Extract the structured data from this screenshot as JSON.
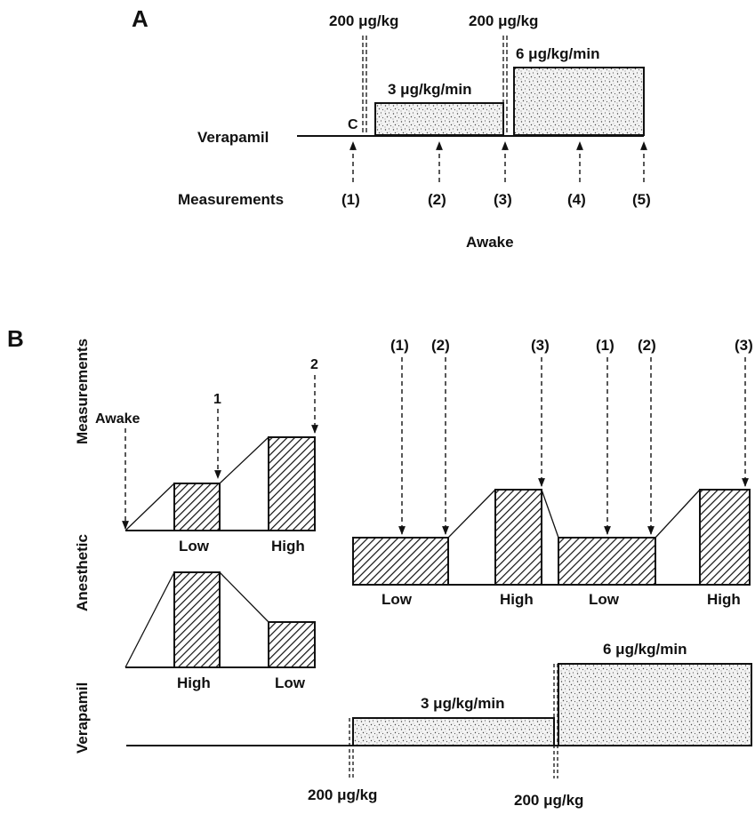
{
  "panel_a": {
    "letter": "A",
    "bolus_1": "200 μg/kg",
    "bolus_2": "200 μg/kg",
    "infusion_low": "3 μg/kg/min",
    "infusion_high": "6 μg/kg/min",
    "control_marker": "C",
    "verapamil_label": "Verapamil",
    "measurements_label": "Measurements",
    "measurement_points": [
      "(1)",
      "(2)",
      "(3)",
      "(4)",
      "(5)"
    ],
    "state_label": "Awake"
  },
  "panel_b": {
    "letter": "B",
    "measurements_label": "Measurements",
    "anesthetic_label": "Anesthetic",
    "verapamil_label": "Verapamil",
    "awake_label": "Awake",
    "left_points": [
      "1",
      "2"
    ],
    "left_upper_levels": [
      "Low",
      "High"
    ],
    "left_lower_levels": [
      "High",
      "Low"
    ],
    "right_points": [
      "(1)",
      "(2)",
      "(3)",
      "(1)",
      "(2)",
      "(3)"
    ],
    "right_levels": [
      "Low",
      "High",
      "Low",
      "High"
    ],
    "infusion_low": "3 μg/kg/min",
    "infusion_high": "6 μg/kg/min",
    "bolus_1": "200 μg/kg",
    "bolus_2": "200 μg/kg"
  },
  "colors": {
    "ink": "#111111",
    "background": "#ffffff"
  }
}
